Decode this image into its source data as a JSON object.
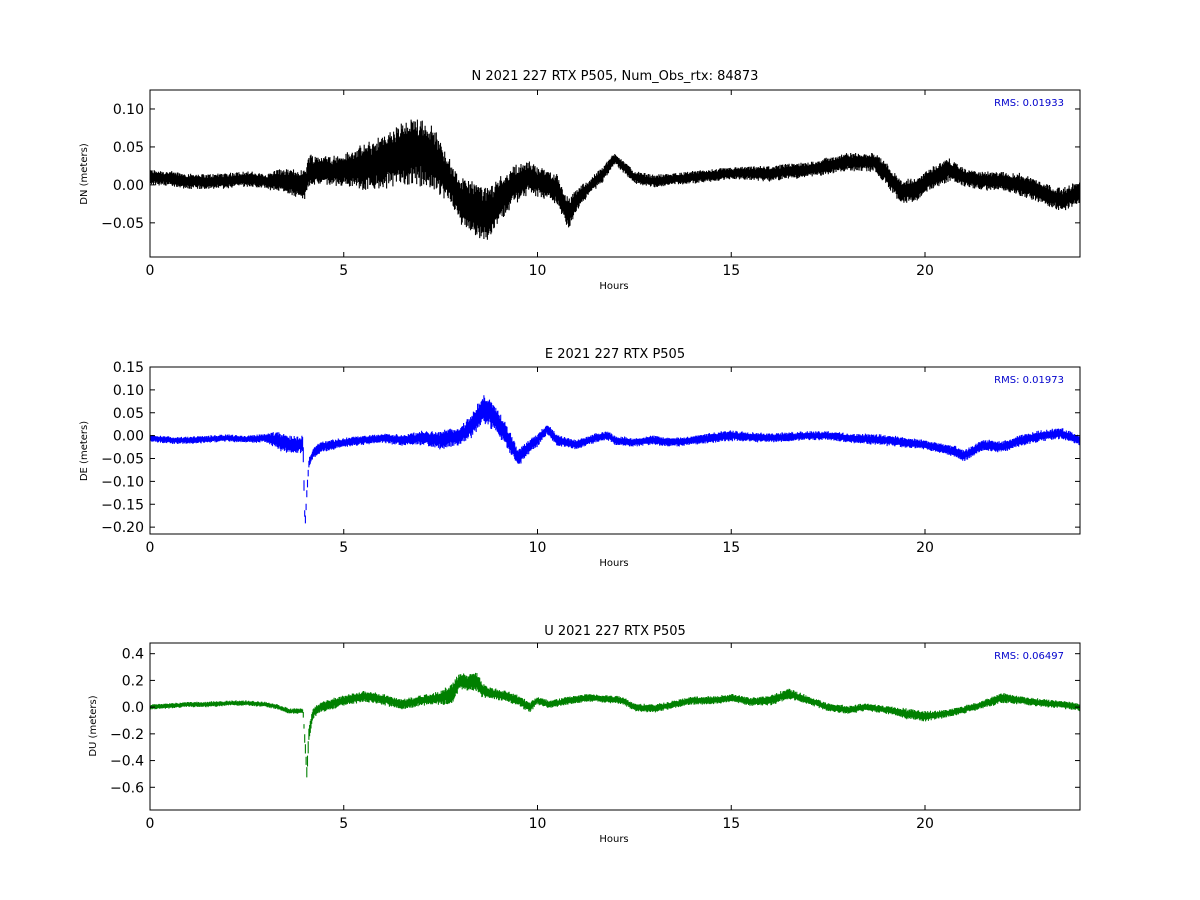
{
  "chart_data": [
    {
      "type": "scatter",
      "title": "N 2021 227 RTX  P505, Num_Obs_rtx: 84873",
      "xlabel": "Hours",
      "ylabel": "DN (meters)",
      "xlim": [
        0,
        24
      ],
      "ylim": [
        -0.095,
        0.125
      ],
      "xticks": [
        0,
        5,
        10,
        15,
        20
      ],
      "yticks": [
        -0.05,
        0.0,
        0.05,
        0.1
      ],
      "ytick_labels": [
        "−0.05",
        "0.00",
        "0.05",
        "0.10"
      ],
      "annotation": "RMS:  0.01933",
      "color": "#000000",
      "annotation_color": "#0000cc",
      "series": [
        {
          "x": [
            0.0,
            0.5,
            1.0,
            1.5,
            2.0,
            2.5,
            3.0,
            3.3,
            3.5,
            4.0,
            4.1,
            4.5,
            5.0,
            5.5,
            6.0,
            6.5,
            7.0,
            7.4,
            7.8,
            8.0,
            8.3,
            8.7,
            9.0,
            9.4,
            9.8,
            10.2,
            10.5,
            10.8,
            11.0,
            11.3,
            11.7,
            12.0,
            12.5,
            13.0,
            14.0,
            15.0,
            16.0,
            17.0,
            18.0,
            18.7,
            19.0,
            19.4,
            19.8,
            20.2,
            20.6,
            21.0,
            21.5,
            22.0,
            22.5,
            23.0,
            23.5,
            24.0
          ],
          "y": [
            0.01,
            0.008,
            0.005,
            0.004,
            0.006,
            0.008,
            0.004,
            0.006,
            0.005,
            0.0,
            0.02,
            0.018,
            0.02,
            0.022,
            0.03,
            0.04,
            0.045,
            0.03,
            0.0,
            -0.02,
            -0.03,
            -0.04,
            -0.02,
            0.0,
            0.01,
            0.0,
            -0.005,
            -0.04,
            -0.02,
            -0.005,
            0.015,
            0.035,
            0.01,
            0.005,
            0.01,
            0.015,
            0.015,
            0.02,
            0.03,
            0.03,
            0.015,
            -0.01,
            -0.005,
            0.01,
            0.02,
            0.01,
            0.005,
            0.005,
            0.0,
            -0.01,
            -0.02,
            -0.01
          ],
          "spread": [
            0.01,
            0.01,
            0.01,
            0.01,
            0.01,
            0.01,
            0.01,
            0.015,
            0.015,
            0.02,
            0.02,
            0.02,
            0.02,
            0.03,
            0.035,
            0.04,
            0.045,
            0.04,
            0.025,
            0.03,
            0.035,
            0.035,
            0.03,
            0.025,
            0.02,
            0.02,
            0.02,
            0.02,
            0.015,
            0.01,
            0.01,
            0.008,
            0.008,
            0.008,
            0.008,
            0.008,
            0.01,
            0.01,
            0.012,
            0.012,
            0.015,
            0.015,
            0.015,
            0.015,
            0.015,
            0.012,
            0.012,
            0.012,
            0.015,
            0.015,
            0.015,
            0.015
          ]
        }
      ]
    },
    {
      "type": "scatter",
      "title": "E 2021 227 RTX  P505",
      "xlabel": "Hours",
      "ylabel": "DE (meters)",
      "xlim": [
        0,
        24
      ],
      "ylim": [
        -0.215,
        0.15
      ],
      "xticks": [
        0,
        5,
        10,
        15,
        20
      ],
      "yticks": [
        -0.2,
        -0.15,
        -0.1,
        -0.05,
        0.0,
        0.05,
        0.1,
        0.15
      ],
      "ytick_labels": [
        "−0.20",
        "−0.15",
        "−0.10",
        "−0.05",
        "0.00",
        "0.05",
        "0.10",
        "0.15"
      ],
      "annotation": "RMS:  0.01973",
      "color": "#0000ff",
      "annotation_color": "#0000cc",
      "series": [
        {
          "x": [
            0.0,
            0.5,
            1.0,
            1.5,
            2.0,
            2.5,
            3.0,
            3.3,
            3.6,
            3.95,
            4.0,
            4.05,
            4.1,
            4.2,
            4.4,
            5.0,
            5.5,
            6.0,
            6.5,
            7.0,
            7.5,
            8.0,
            8.3,
            8.6,
            8.9,
            9.2,
            9.5,
            9.7,
            10.0,
            10.25,
            10.5,
            11.0,
            11.5,
            11.8,
            12.0,
            12.5,
            13.0,
            13.5,
            14.0,
            15.0,
            16.0,
            17.0,
            17.5,
            18.0,
            19.0,
            20.0,
            20.8,
            21.0,
            21.5,
            22.0,
            22.5,
            23.0,
            23.5,
            24.0
          ],
          "y": [
            -0.005,
            -0.01,
            -0.01,
            -0.008,
            -0.005,
            -0.008,
            -0.005,
            -0.01,
            -0.02,
            -0.02,
            -0.2,
            -0.12,
            -0.06,
            -0.04,
            -0.025,
            -0.015,
            -0.01,
            -0.005,
            -0.01,
            -0.005,
            -0.01,
            0.0,
            0.02,
            0.06,
            0.04,
            0.0,
            -0.05,
            -0.03,
            -0.01,
            0.015,
            -0.01,
            -0.02,
            -0.005,
            0.0,
            -0.01,
            -0.015,
            -0.01,
            -0.015,
            -0.01,
            0.0,
            -0.005,
            0.0,
            0.0,
            -0.005,
            -0.01,
            -0.02,
            -0.035,
            -0.045,
            -0.02,
            -0.025,
            -0.01,
            0.0,
            0.005,
            -0.01
          ],
          "spread": [
            0.008,
            0.008,
            0.008,
            0.008,
            0.008,
            0.008,
            0.01,
            0.02,
            0.02,
            0.02,
            0.01,
            0.01,
            0.01,
            0.012,
            0.012,
            0.01,
            0.01,
            0.01,
            0.012,
            0.015,
            0.02,
            0.02,
            0.025,
            0.03,
            0.03,
            0.025,
            0.02,
            0.015,
            0.015,
            0.012,
            0.012,
            0.01,
            0.01,
            0.01,
            0.01,
            0.01,
            0.01,
            0.01,
            0.01,
            0.012,
            0.01,
            0.01,
            0.01,
            0.01,
            0.012,
            0.01,
            0.012,
            0.012,
            0.012,
            0.012,
            0.012,
            0.012,
            0.012,
            0.012
          ]
        }
      ]
    },
    {
      "type": "scatter",
      "title": "U 2021 227 RTX  P505",
      "xlabel": "Hours",
      "ylabel": "DU (meters)",
      "xlim": [
        0,
        24
      ],
      "ylim": [
        -0.77,
        0.48
      ],
      "xticks": [
        0,
        5,
        10,
        15,
        20
      ],
      "yticks": [
        -0.6,
        -0.4,
        -0.2,
        0.0,
        0.2,
        0.4
      ],
      "ytick_labels": [
        "−0.6",
        "−0.4",
        "−0.2",
        "0.0",
        "0.2",
        "0.4"
      ],
      "annotation": "RMS:  0.06497",
      "color": "#008000",
      "annotation_color": "#0000cc",
      "series": [
        {
          "x": [
            0.0,
            0.5,
            1.0,
            1.5,
            2.0,
            2.5,
            3.0,
            3.3,
            3.6,
            3.95,
            4.05,
            4.1,
            4.2,
            4.4,
            5.0,
            5.5,
            6.0,
            6.5,
            7.0,
            7.5,
            7.8,
            8.0,
            8.2,
            8.4,
            8.6,
            8.9,
            9.2,
            9.5,
            9.8,
            10.0,
            10.3,
            10.8,
            11.3,
            11.8,
            12.2,
            12.5,
            13.0,
            13.5,
            14.0,
            14.5,
            15.0,
            15.5,
            16.0,
            16.5,
            17.0,
            17.5,
            18.0,
            18.5,
            19.0,
            19.5,
            20.0,
            20.5,
            21.0,
            21.5,
            22.0,
            22.5,
            23.0,
            23.5,
            24.0
          ],
          "y": [
            0.0,
            0.01,
            0.02,
            0.02,
            0.03,
            0.03,
            0.02,
            0.0,
            -0.03,
            -0.03,
            -0.5,
            -0.2,
            -0.05,
            0.0,
            0.05,
            0.08,
            0.06,
            0.02,
            0.05,
            0.07,
            0.1,
            0.2,
            0.18,
            0.2,
            0.12,
            0.1,
            0.08,
            0.05,
            0.0,
            0.05,
            0.02,
            0.05,
            0.07,
            0.06,
            0.05,
            0.0,
            -0.01,
            0.02,
            0.05,
            0.05,
            0.07,
            0.04,
            0.05,
            0.1,
            0.05,
            0.0,
            -0.02,
            0.0,
            -0.02,
            -0.05,
            -0.07,
            -0.05,
            -0.02,
            0.02,
            0.07,
            0.05,
            0.03,
            0.02,
            0.0
          ],
          "spread": [
            0.02,
            0.02,
            0.02,
            0.02,
            0.02,
            0.02,
            0.02,
            0.02,
            0.02,
            0.02,
            0.06,
            0.05,
            0.04,
            0.04,
            0.04,
            0.04,
            0.04,
            0.04,
            0.04,
            0.05,
            0.08,
            0.06,
            0.06,
            0.08,
            0.05,
            0.04,
            0.04,
            0.04,
            0.04,
            0.03,
            0.03,
            0.03,
            0.03,
            0.03,
            0.03,
            0.03,
            0.03,
            0.03,
            0.03,
            0.03,
            0.03,
            0.03,
            0.04,
            0.04,
            0.03,
            0.03,
            0.03,
            0.03,
            0.03,
            0.04,
            0.04,
            0.03,
            0.03,
            0.03,
            0.04,
            0.03,
            0.03,
            0.03,
            0.03
          ]
        }
      ]
    }
  ]
}
